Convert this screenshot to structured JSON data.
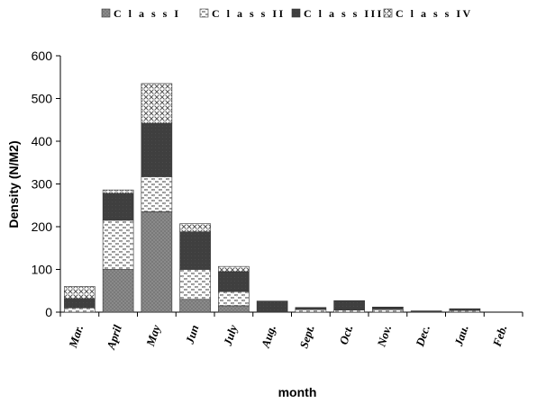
{
  "chart_data": {
    "type": "bar",
    "stacked": true,
    "categories": [
      "Mar.",
      "April",
      "May",
      "Jun",
      "July",
      "Aug.",
      "Sept.",
      "Oct.",
      "Nov.",
      "Dec.",
      "Jau.",
      "Feb."
    ],
    "series": [
      {
        "name": "C l a s s   I",
        "color": "#808080",
        "pattern": "solid-gray",
        "values": [
          0,
          100,
          235,
          30,
          15,
          0,
          0,
          0,
          0,
          0,
          0,
          0
        ]
      },
      {
        "name": "C l a s s   II",
        "color": "#c0c0c0",
        "pattern": "dotted-check",
        "values": [
          10,
          115,
          82,
          70,
          33,
          0,
          6,
          5,
          6,
          0,
          4,
          0
        ]
      },
      {
        "name": "C l a s s   III",
        "color": "#404040",
        "pattern": "solid-dark",
        "values": [
          22,
          63,
          125,
          88,
          47,
          26,
          4,
          22,
          5,
          3,
          3,
          0
        ]
      },
      {
        "name": "C l a s s   IV",
        "color": "#d8d8d8",
        "pattern": "crosshatch",
        "values": [
          28,
          8,
          93,
          19,
          12,
          0,
          1,
          0,
          1,
          0,
          1,
          0
        ]
      }
    ],
    "xlabel": "month",
    "ylabel": "Density (N/M2)",
    "ylim": [
      0,
      600
    ],
    "yticks": [
      "0",
      "100",
      "200",
      "300",
      "400",
      "500",
      "600"
    ],
    "grid": false,
    "legend": "top"
  }
}
